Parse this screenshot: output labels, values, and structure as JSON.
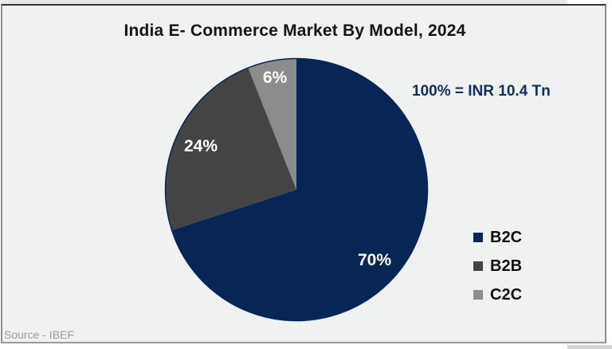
{
  "chart_data": {
    "type": "pie",
    "title": "India E- Commerce Market By Model, 2024",
    "annotation": "100% = INR 10.4 Tn",
    "source": "Source - IBEF",
    "legend_position": "right",
    "start_angle_deg": 0,
    "direction": "clockwise",
    "total_percent": 100,
    "slices": [
      {
        "label": "B2C",
        "value": 70,
        "pct_label": "70%",
        "color": "#072656"
      },
      {
        "label": "B2B",
        "value": 24,
        "pct_label": "24%",
        "color": "#444444"
      },
      {
        "label": "C2C",
        "value": 6,
        "pct_label": "6%",
        "color": "#8c8c8c"
      }
    ]
  },
  "frame_colors": {
    "plot_background": "#f0f1f1",
    "border_top": "#333333",
    "border_sides": "#8f8f8f",
    "annotation_text": "#122f63",
    "source_text": "#9a9a9a"
  }
}
